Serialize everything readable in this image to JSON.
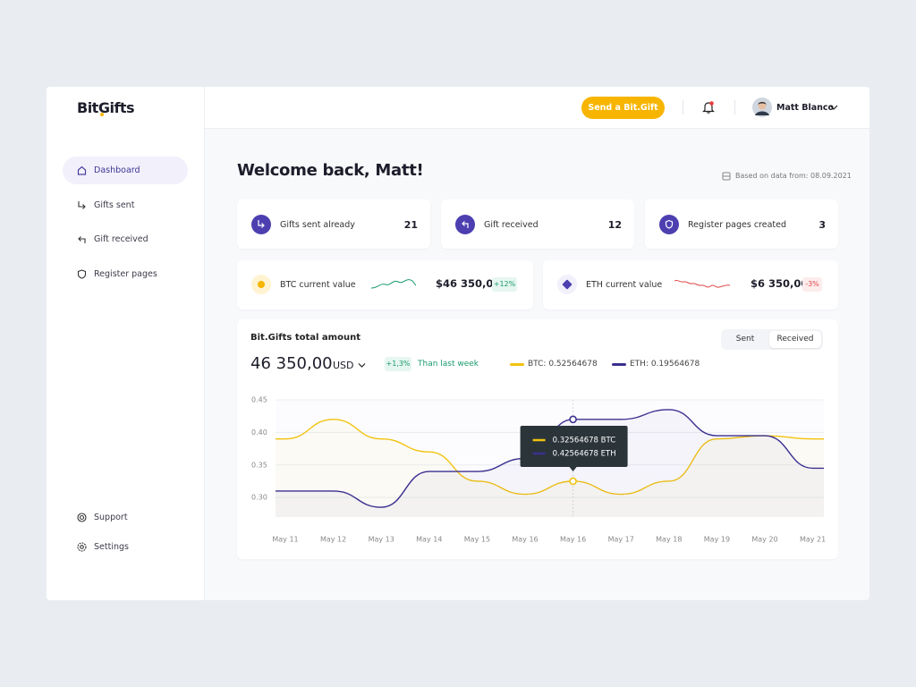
{
  "sidebar": {
    "logo": "BitGifts",
    "nav": [
      "Dashboard",
      "Gifts sent",
      "Gift received",
      "Register pages"
    ],
    "bottom": [
      "Support",
      "Settings"
    ]
  },
  "header": {
    "button": "Send a Bit.Gift",
    "user": "Matt Blanco"
  },
  "welcome": {
    "title": "Welcome back, Matt!",
    "note": "Based on data from: 08.09.2021"
  },
  "stats": [
    {
      "label": "Gifts sent already",
      "value": 21
    },
    {
      "label": "Gift received",
      "value": 12
    },
    {
      "label": "Register pages created",
      "value": 3
    }
  ],
  "prices": [
    {
      "label": "BTC current value",
      "value": "$46 350,00",
      "change": "+12%"
    },
    {
      "label": "ETH current value",
      "value": "$6 350,00",
      "change": "-3%"
    }
  ],
  "chart_data": {
    "type": "line",
    "title": "Bit.Gifts total amount",
    "total": "46 350,00",
    "currency": "USD",
    "change": "+1,3%",
    "change_note": "Than last week",
    "tabs": [
      "Sent",
      "Received"
    ],
    "categories": [
      "May 11",
      "May 12",
      "May 13",
      "May 14",
      "May 15",
      "May 16",
      "May 16",
      "May 17",
      "May 18",
      "May 19",
      "May 20",
      "May 21"
    ],
    "series": [
      {
        "name": "BTC: 0.52564678",
        "color": "#f2c20f",
        "values": [
          0.39,
          0.42,
          0.39,
          0.37,
          0.325,
          0.305,
          0.325,
          0.305,
          0.325,
          0.39,
          0.395,
          0.39
        ]
      },
      {
        "name": "ETH: 0.19564678",
        "color": "#3b2f8f",
        "values": [
          0.31,
          0.31,
          0.285,
          0.34,
          0.34,
          0.36,
          0.42,
          0.42,
          0.435,
          0.395,
          0.395,
          0.345
        ]
      }
    ],
    "ylim": [
      0.27,
      0.45
    ],
    "yticks": [
      {
        "value": 0.3,
        "label": "0.30"
      },
      0.35,
      {
        "value": 0.4,
        "label": "0.40"
      },
      0.45
    ],
    "grid": true,
    "tooltip": {
      "index": 6,
      "lines": [
        "0.32564678 BTC",
        "0.42564678 ETH"
      ]
    }
  }
}
